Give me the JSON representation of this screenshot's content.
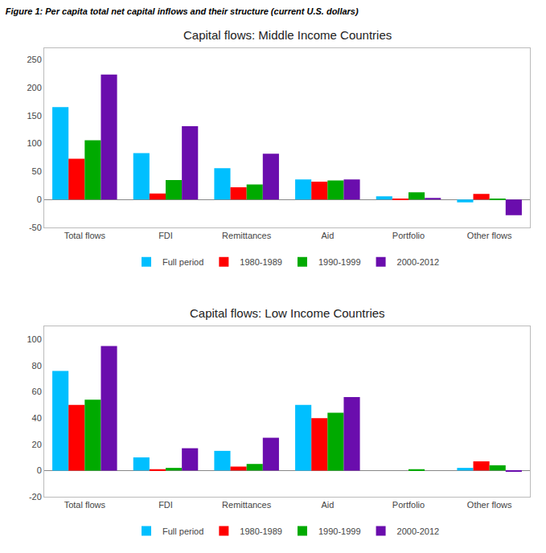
{
  "title": "Figure 1: Per capita total net capital inflows and their structure (current U.S. dollars)",
  "chart_data": [
    {
      "type": "bar",
      "title": "Capital flows: Middle Income Countries",
      "categories": [
        "Total flows",
        "FDI",
        "Remittances",
        "Aid",
        "Portfolio",
        "Other flows"
      ],
      "series": [
        {
          "name": "Full period",
          "color": "#00BFFF",
          "values": [
            165,
            83,
            56,
            36,
            6,
            -5
          ]
        },
        {
          "name": "1980-1989",
          "color": "#FF0000",
          "values": [
            73,
            11,
            22,
            32,
            2,
            10
          ]
        },
        {
          "name": "1990-1999",
          "color": "#00AA00",
          "values": [
            106,
            35,
            27,
            34,
            13,
            2
          ]
        },
        {
          "name": "2000-2012",
          "color": "#6A0DAD",
          "values": [
            223,
            131,
            82,
            36,
            3,
            -28
          ]
        }
      ],
      "ylim": [
        -50,
        270
      ],
      "yticks": [
        -50,
        0,
        50,
        100,
        150,
        200,
        250
      ],
      "grid": false,
      "legend": "bottom"
    },
    {
      "type": "bar",
      "title": "Capital flows: Low Income Countries",
      "categories": [
        "Total flows",
        "FDI",
        "Remittances",
        "Aid",
        "Portfolio",
        "Other flows"
      ],
      "series": [
        {
          "name": "Full period",
          "color": "#00BFFF",
          "values": [
            76,
            10,
            15,
            50,
            0,
            2
          ]
        },
        {
          "name": "1980-1989",
          "color": "#FF0000",
          "values": [
            50,
            1,
            3,
            40,
            0,
            7
          ]
        },
        {
          "name": "1990-1999",
          "color": "#00AA00",
          "values": [
            54,
            2,
            5,
            44,
            1,
            4
          ]
        },
        {
          "name": "2000-2012",
          "color": "#6A0DAD",
          "values": [
            95,
            17,
            25,
            56,
            0,
            -1
          ]
        }
      ],
      "ylim": [
        -20,
        110
      ],
      "yticks": [
        -20,
        0,
        20,
        40,
        60,
        80,
        100
      ],
      "grid": false,
      "legend": "bottom"
    }
  ]
}
